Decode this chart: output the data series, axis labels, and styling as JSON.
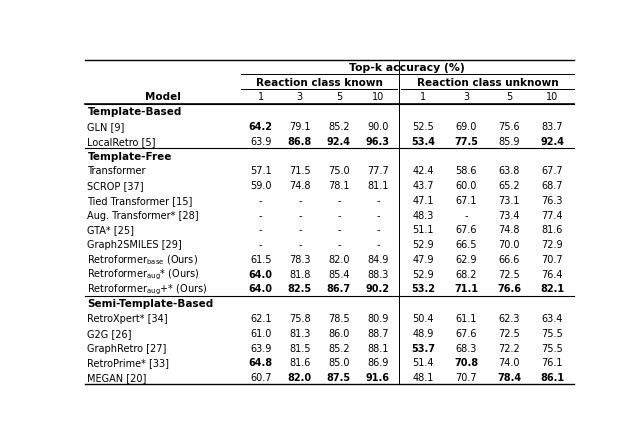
{
  "title": "Top-k accuracy (%)",
  "sections": [
    {
      "header": "Template-Based",
      "rows": [
        {
          "model": "GLN [9]",
          "model_latex": "GLN [9]",
          "known": [
            "64.2",
            "79.1",
            "85.2",
            "90.0"
          ],
          "unknown": [
            "52.5",
            "69.0",
            "75.6",
            "83.7"
          ],
          "bold_known": [
            true,
            false,
            false,
            false
          ],
          "bold_unknown": [
            false,
            false,
            false,
            false
          ]
        },
        {
          "model": "LocalRetro [5]",
          "model_latex": "LocalRetro [5]",
          "known": [
            "63.9",
            "86.8",
            "92.4",
            "96.3"
          ],
          "unknown": [
            "53.4",
            "77.5",
            "85.9",
            "92.4"
          ],
          "bold_known": [
            false,
            true,
            true,
            true
          ],
          "bold_unknown": [
            true,
            true,
            false,
            true
          ]
        }
      ]
    },
    {
      "header": "Template-Free",
      "rows": [
        {
          "model": "Transformer",
          "model_latex": "Transformer",
          "known": [
            "57.1",
            "71.5",
            "75.0",
            "77.7"
          ],
          "unknown": [
            "42.4",
            "58.6",
            "63.8",
            "67.7"
          ],
          "bold_known": [
            false,
            false,
            false,
            false
          ],
          "bold_unknown": [
            false,
            false,
            false,
            false
          ]
        },
        {
          "model": "SCROP [37]",
          "model_latex": "SCROP [37]",
          "known": [
            "59.0",
            "74.8",
            "78.1",
            "81.1"
          ],
          "unknown": [
            "43.7",
            "60.0",
            "65.2",
            "68.7"
          ],
          "bold_known": [
            false,
            false,
            false,
            false
          ],
          "bold_unknown": [
            false,
            false,
            false,
            false
          ]
        },
        {
          "model": "Tied Transformer [15]",
          "model_latex": "Tied Transformer [15]",
          "known": [
            "-",
            "-",
            "-",
            "-"
          ],
          "unknown": [
            "47.1",
            "67.1",
            "73.1",
            "76.3"
          ],
          "bold_known": [
            false,
            false,
            false,
            false
          ],
          "bold_unknown": [
            false,
            false,
            false,
            false
          ]
        },
        {
          "model": "Aug. Transformer* [28]",
          "model_latex": "Aug. Transformer* [28]",
          "known": [
            "-",
            "-",
            "-",
            "-"
          ],
          "unknown": [
            "48.3",
            "-",
            "73.4",
            "77.4"
          ],
          "bold_known": [
            false,
            false,
            false,
            false
          ],
          "bold_unknown": [
            false,
            false,
            false,
            false
          ]
        },
        {
          "model": "GTA* [25]",
          "model_latex": "GTA* [25]",
          "known": [
            "-",
            "-",
            "-",
            "-"
          ],
          "unknown": [
            "51.1",
            "67.6",
            "74.8",
            "81.6"
          ],
          "bold_known": [
            false,
            false,
            false,
            false
          ],
          "bold_unknown": [
            false,
            false,
            false,
            false
          ]
        },
        {
          "model": "Graph2SMILES [29]",
          "model_latex": "Graph2SMILES [29]",
          "known": [
            "-",
            "-",
            "-",
            "-"
          ],
          "unknown": [
            "52.9",
            "66.5",
            "70.0",
            "72.9"
          ],
          "bold_known": [
            false,
            false,
            false,
            false
          ],
          "bold_unknown": [
            false,
            false,
            false,
            false
          ]
        },
        {
          "model": "Retroformer_base (Ours)",
          "model_latex": "retro_base",
          "known": [
            "61.5",
            "78.3",
            "82.0",
            "84.9"
          ],
          "unknown": [
            "47.9",
            "62.9",
            "66.6",
            "70.7"
          ],
          "bold_known": [
            false,
            false,
            false,
            false
          ],
          "bold_unknown": [
            false,
            false,
            false,
            false
          ]
        },
        {
          "model": "Retroformer_aug* (Ours)",
          "model_latex": "retro_aug",
          "known": [
            "64.0",
            "81.8",
            "85.4",
            "88.3"
          ],
          "unknown": [
            "52.9",
            "68.2",
            "72.5",
            "76.4"
          ],
          "bold_known": [
            true,
            false,
            false,
            false
          ],
          "bold_unknown": [
            false,
            false,
            false,
            false
          ]
        },
        {
          "model": "Retroformer_aug+* (Ours)",
          "model_latex": "retro_aug_plus",
          "known": [
            "64.0",
            "82.5",
            "86.7",
            "90.2"
          ],
          "unknown": [
            "53.2",
            "71.1",
            "76.6",
            "82.1"
          ],
          "bold_known": [
            true,
            true,
            true,
            true
          ],
          "bold_unknown": [
            true,
            true,
            true,
            true
          ]
        }
      ]
    },
    {
      "header": "Semi-Template-Based",
      "rows": [
        {
          "model": "RetroXpert* [34]",
          "model_latex": "RetroXpert* [34]",
          "known": [
            "62.1",
            "75.8",
            "78.5",
            "80.9"
          ],
          "unknown": [
            "50.4",
            "61.1",
            "62.3",
            "63.4"
          ],
          "bold_known": [
            false,
            false,
            false,
            false
          ],
          "bold_unknown": [
            false,
            false,
            false,
            false
          ]
        },
        {
          "model": "G2G [26]",
          "model_latex": "G2G [26]",
          "known": [
            "61.0",
            "81.3",
            "86.0",
            "88.7"
          ],
          "unknown": [
            "48.9",
            "67.6",
            "72.5",
            "75.5"
          ],
          "bold_known": [
            false,
            false,
            false,
            false
          ],
          "bold_unknown": [
            false,
            false,
            false,
            false
          ]
        },
        {
          "model": "GraphRetro [27]",
          "model_latex": "GraphRetro [27]",
          "known": [
            "63.9",
            "81.5",
            "85.2",
            "88.1"
          ],
          "unknown": [
            "53.7",
            "68.3",
            "72.2",
            "75.5"
          ],
          "bold_known": [
            false,
            false,
            false,
            false
          ],
          "bold_unknown": [
            true,
            false,
            false,
            false
          ]
        },
        {
          "model": "RetroPrime* [33]",
          "model_latex": "RetroPrime* [33]",
          "known": [
            "64.8",
            "81.6",
            "85.0",
            "86.9"
          ],
          "unknown": [
            "51.4",
            "70.8",
            "74.0",
            "76.1"
          ],
          "bold_known": [
            true,
            false,
            false,
            false
          ],
          "bold_unknown": [
            false,
            true,
            false,
            false
          ]
        },
        {
          "model": "MEGAN [20]",
          "model_latex": "MEGAN [20]",
          "known": [
            "60.7",
            "82.0",
            "87.5",
            "91.6"
          ],
          "unknown": [
            "48.1",
            "70.7",
            "78.4",
            "86.1"
          ],
          "bold_known": [
            false,
            true,
            true,
            true
          ],
          "bold_unknown": [
            false,
            false,
            true,
            true
          ]
        }
      ]
    }
  ]
}
